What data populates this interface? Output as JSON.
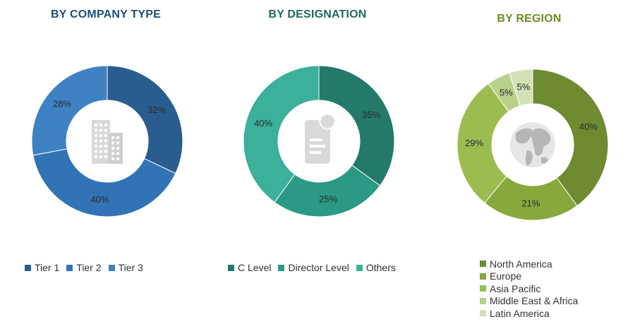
{
  "chart_data": [
    {
      "type": "pie",
      "title": "BY COMPANY TYPE",
      "title_color": "#1f4e79",
      "center_icon": "building-icon",
      "categories": [
        "Tier 1",
        "Tier 2",
        "Tier 3"
      ],
      "values": [
        32,
        40,
        28
      ],
      "labels": [
        "32%",
        "40%",
        "28%"
      ],
      "colors": [
        "#2a5d8f",
        "#3273b5",
        "#3e82c4"
      ],
      "legend_placement": "bottom"
    },
    {
      "type": "pie",
      "title": "BY DESIGNATION",
      "title_color": "#1d6b5e",
      "center_icon": "document-badge-icon",
      "categories": [
        "C Level",
        "Director Level",
        "Others"
      ],
      "values": [
        35,
        25,
        40
      ],
      "labels": [
        "35%",
        "25%",
        "40%"
      ],
      "colors": [
        "#237a6a",
        "#2a9a84",
        "#3bb09a"
      ],
      "legend_placement": "bottom"
    },
    {
      "type": "pie",
      "title": "BY REGION",
      "title_color": "#6b8e23",
      "center_icon": "globe-icon",
      "categories": [
        "North America",
        "Europe",
        "Asia Pacific",
        "Middle East & Africa",
        "Latin America"
      ],
      "values": [
        40,
        21,
        29,
        5,
        5
      ],
      "labels": [
        "40%",
        "21%",
        "29%",
        "5%",
        "5%"
      ],
      "colors": [
        "#6e8b32",
        "#86a83c",
        "#9bbd4f",
        "#b9d08a",
        "#d2e2b6"
      ],
      "legend_placement": "bottom"
    }
  ]
}
